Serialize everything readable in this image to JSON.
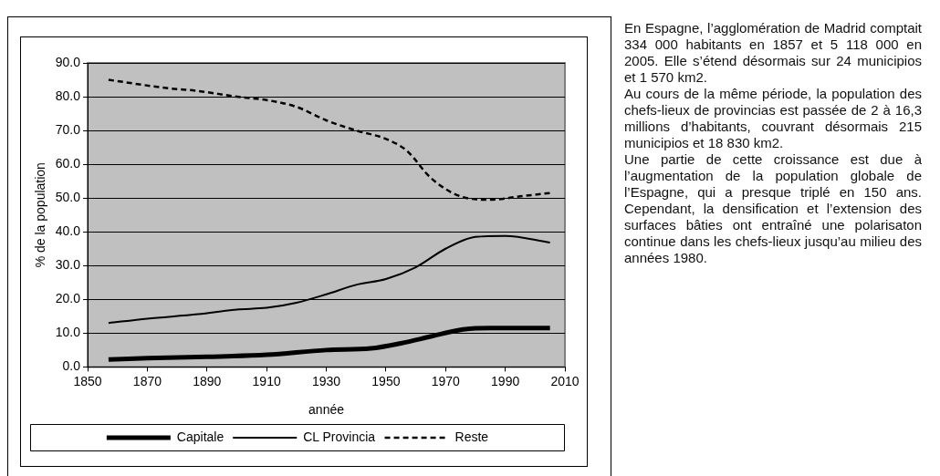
{
  "chart_data": {
    "type": "line",
    "xlabel": "année",
    "ylabel": "% de la population",
    "xlim": [
      1850,
      2010
    ],
    "xticks": [
      1850,
      1870,
      1890,
      1910,
      1930,
      1950,
      1970,
      1990,
      2010
    ],
    "ylim": [
      0,
      90
    ],
    "yticks": [
      {
        "value": 0,
        "label": "0.0"
      },
      {
        "value": 10,
        "label": "10.0"
      },
      {
        "value": 20,
        "label": "20.0"
      },
      {
        "value": 30,
        "label": "30.0"
      },
      {
        "value": 40,
        "label": "40.0"
      },
      {
        "value": 50,
        "label": "50.0"
      },
      {
        "value": 60,
        "label": "60.0"
      },
      {
        "value": 70,
        "label": "70.0"
      },
      {
        "value": 80,
        "label": "80.0"
      },
      {
        "value": 90,
        "label": "90.0"
      }
    ],
    "grid": "y",
    "legend": "bottom",
    "marker": "none",
    "series": [
      {
        "name": "Capitale",
        "color": "#000000",
        "line_style": "solid",
        "x": [
          1857,
          1870,
          1890,
          1910,
          1930,
          1945,
          1955,
          1965,
          1975,
          1985,
          2005
        ],
        "values": [
          2.2,
          2.6,
          3,
          3.6,
          5,
          5.5,
          7,
          9,
          11,
          11.5,
          11.5
        ]
      },
      {
        "name": "CL Provincia",
        "color": "#000000",
        "line_style": "solid",
        "x": [
          1857,
          1870,
          1887,
          1900,
          1910,
          1920,
          1930,
          1940,
          1950,
          1960,
          1970,
          1980,
          1990,
          2005
        ],
        "values": [
          13,
          14.3,
          15.6,
          17,
          17.5,
          19,
          21.5,
          24.3,
          26,
          29.5,
          35,
          38.5,
          38.8,
          36.8
        ]
      },
      {
        "name": "Reste",
        "color": "#000000",
        "line_style": "dashed",
        "x": [
          1857,
          1877,
          1887,
          1900,
          1910,
          1920,
          1930,
          1940,
          1950,
          1957,
          1965,
          1975,
          1985,
          1995,
          2005
        ],
        "values": [
          85,
          82.5,
          81.7,
          80,
          79,
          77,
          73,
          70,
          67.5,
          64,
          56,
          50.5,
          49.5,
          50.5,
          51.5
        ]
      }
    ],
    "annotations": [
      "En Espagne, l’agglomération de Madrid comptait 334 000 habitants en 1857 et 5 118 000 en 2005. Elle s’étend désormais sur 24 municipios et 1 570 km2.",
      "Au cours de la même période, la population des chefs-lieux de provincias est passée de 2 à 16,3 millions d’habitants, couvrant désormais 215 municipios et 18 830 km2.",
      "Une partie de cette croissance est due à l’augmentation de la population globale de l’Espagne, qui a presque triplé en 150 ans. Cependant, la densification et l’extension des surfaces bâties ont entraîné une polarisaton continue dans les chefs-lieux jusqu’au milieu des années 1980."
    ]
  }
}
